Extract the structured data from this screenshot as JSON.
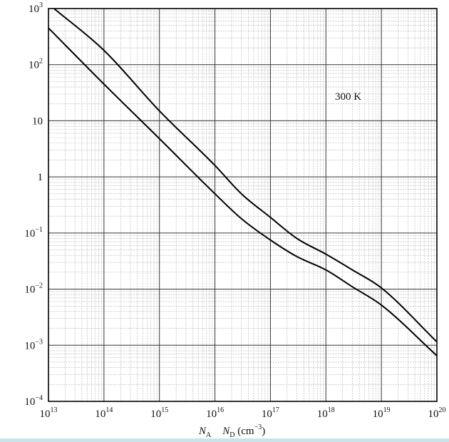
{
  "chart_data": {
    "type": "line",
    "xscale": "log",
    "yscale": "log",
    "xlim": [
      10000000000000.0,
      1e+20
    ],
    "ylim": [
      0.0001,
      1000
    ],
    "grid": true,
    "xticks": [
      {
        "base": "10",
        "exp": "13"
      },
      {
        "base": "10",
        "exp": "14"
      },
      {
        "base": "10",
        "exp": "15"
      },
      {
        "base": "10",
        "exp": "16"
      },
      {
        "base": "10",
        "exp": "17"
      },
      {
        "base": "10",
        "exp": "18"
      },
      {
        "base": "10",
        "exp": "19"
      },
      {
        "base": "10",
        "exp": "20"
      }
    ],
    "yticks": [
      {
        "base": "10",
        "exp": "3"
      },
      {
        "base": "10",
        "exp": "2"
      },
      {
        "base": "10",
        "exp": ""
      },
      {
        "base": "1",
        "exp": ""
      },
      {
        "base": "10",
        "exp": "−1"
      },
      {
        "base": "10",
        "exp": "−2"
      },
      {
        "base": "10",
        "exp": "−3"
      },
      {
        "base": "10",
        "exp": "−4"
      }
    ],
    "xlabel": {
      "a_main": "N",
      "a_sub": "A",
      "d_main": "N",
      "d_sub": "D",
      "unit_open": " (cm",
      "unit_exp": "−3",
      "unit_close": ")"
    },
    "annotation": "300 K",
    "series": [
      {
        "x": [
          12600000000000.0,
          100000000000000.0,
          1000000000000000.0,
          1e+16,
          3e+16,
          1e+17,
          3e+17,
          1e+18,
          3e+18,
          1e+19,
          1e+20
        ],
        "y": [
          1000,
          180,
          15,
          1.6,
          0.5,
          0.19,
          0.08,
          0.042,
          0.022,
          0.0105,
          0.00115
        ]
      },
      {
        "x": [
          10000000000000.0,
          100000000000000.0,
          1000000000000000.0,
          1e+16,
          3e+16,
          1e+17,
          3e+17,
          1e+18,
          3e+18,
          1e+19,
          1e+20
        ],
        "y": [
          450,
          45,
          4.8,
          0.5,
          0.18,
          0.075,
          0.038,
          0.022,
          0.011,
          0.0052,
          0.00065
        ]
      }
    ]
  }
}
